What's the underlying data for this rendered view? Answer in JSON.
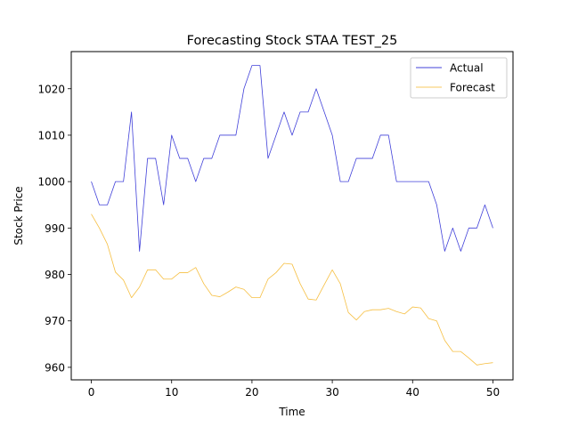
{
  "chart_data": {
    "type": "line",
    "title": "Forecasting Stock STAA TEST_25",
    "xlabel": "Time",
    "ylabel": "Stock Price",
    "xlim": [
      -2.5,
      52.5
    ],
    "ylim": [
      957.3,
      1028.0
    ],
    "xticks": [
      0,
      10,
      20,
      30,
      40,
      50
    ],
    "yticks": [
      960,
      970,
      980,
      990,
      1000,
      1010,
      1020
    ],
    "grid": false,
    "legend_position": "top-right",
    "x": [
      0,
      1,
      2,
      3,
      4,
      5,
      6,
      7,
      8,
      9,
      10,
      11,
      12,
      13,
      14,
      15,
      16,
      17,
      18,
      19,
      20,
      21,
      22,
      23,
      24,
      25,
      26,
      27,
      28,
      29,
      30,
      31,
      32,
      33,
      34,
      35,
      36,
      37,
      38,
      39,
      40,
      41,
      42,
      43,
      44,
      45,
      46,
      47,
      48,
      49,
      50
    ],
    "series": [
      {
        "name": "Actual",
        "color": "#0000cc",
        "values": [
          1000,
          995,
          995,
          1000,
          1000,
          1015,
          985,
          1005,
          1005,
          995,
          1010,
          1005,
          1005,
          1000,
          1005,
          1005,
          1010,
          1010,
          1010,
          1020,
          1025,
          1025,
          1005,
          1010,
          1015,
          1010,
          1015,
          1015,
          1020,
          1015,
          1010,
          1000,
          1000,
          1005,
          1005,
          1005,
          1010,
          1010,
          1000,
          1000,
          1000,
          1000,
          1000,
          995,
          985,
          990,
          985,
          990,
          990,
          995,
          990
        ]
      },
      {
        "name": "Forecast",
        "color": "#f5b82e",
        "values": [
          993,
          990,
          986.5,
          980.5,
          978.8,
          975,
          977.3,
          981,
          981,
          979,
          979,
          980.4,
          980.4,
          981.5,
          978,
          975.5,
          975.2,
          976.2,
          977.3,
          976.8,
          975,
          975,
          979,
          980.4,
          982.4,
          982.2,
          978,
          974.7,
          974.5,
          977.8,
          981,
          978,
          971.8,
          970.2,
          972,
          972.4,
          972.4,
          972.7,
          972,
          971.5,
          973,
          972.8,
          970.5,
          970,
          965.8,
          963.4,
          963.4,
          962,
          960.5,
          960.8,
          961
        ]
      }
    ]
  }
}
